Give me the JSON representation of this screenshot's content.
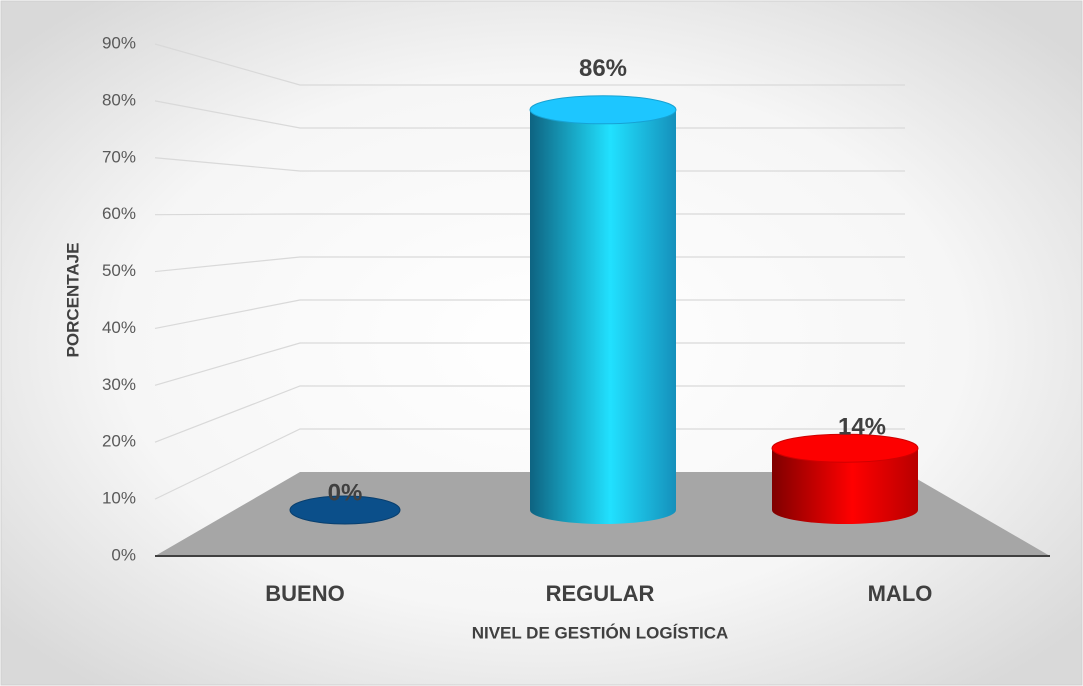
{
  "chart_data": {
    "type": "bar3d",
    "xlabel": "NIVEL DE GESTIÓN LOGÍSTICA",
    "ylabel": "PORCENTAJE",
    "categories": [
      "BUENO",
      "REGULAR",
      "MALO"
    ],
    "values": [
      0,
      86,
      14
    ],
    "value_labels": [
      "0%",
      "86%",
      "14%"
    ],
    "colors": [
      "#0b4f8a",
      "#1ab4ea",
      "#e60000"
    ],
    "ylim": [
      0,
      90
    ],
    "yticks": [
      {
        "value": 0,
        "label": "0%"
      },
      {
        "value": 10,
        "label": "10%"
      },
      {
        "value": 20,
        "label": "20%"
      },
      {
        "value": 30,
        "label": "30%"
      },
      {
        "value": 40,
        "label": "40%"
      },
      {
        "value": 50,
        "label": "50%"
      },
      {
        "value": 60,
        "label": "60%"
      },
      {
        "value": 70,
        "label": "70%"
      },
      {
        "value": 80,
        "label": "80%"
      },
      {
        "value": 90,
        "label": "90%"
      }
    ],
    "grid": true
  }
}
